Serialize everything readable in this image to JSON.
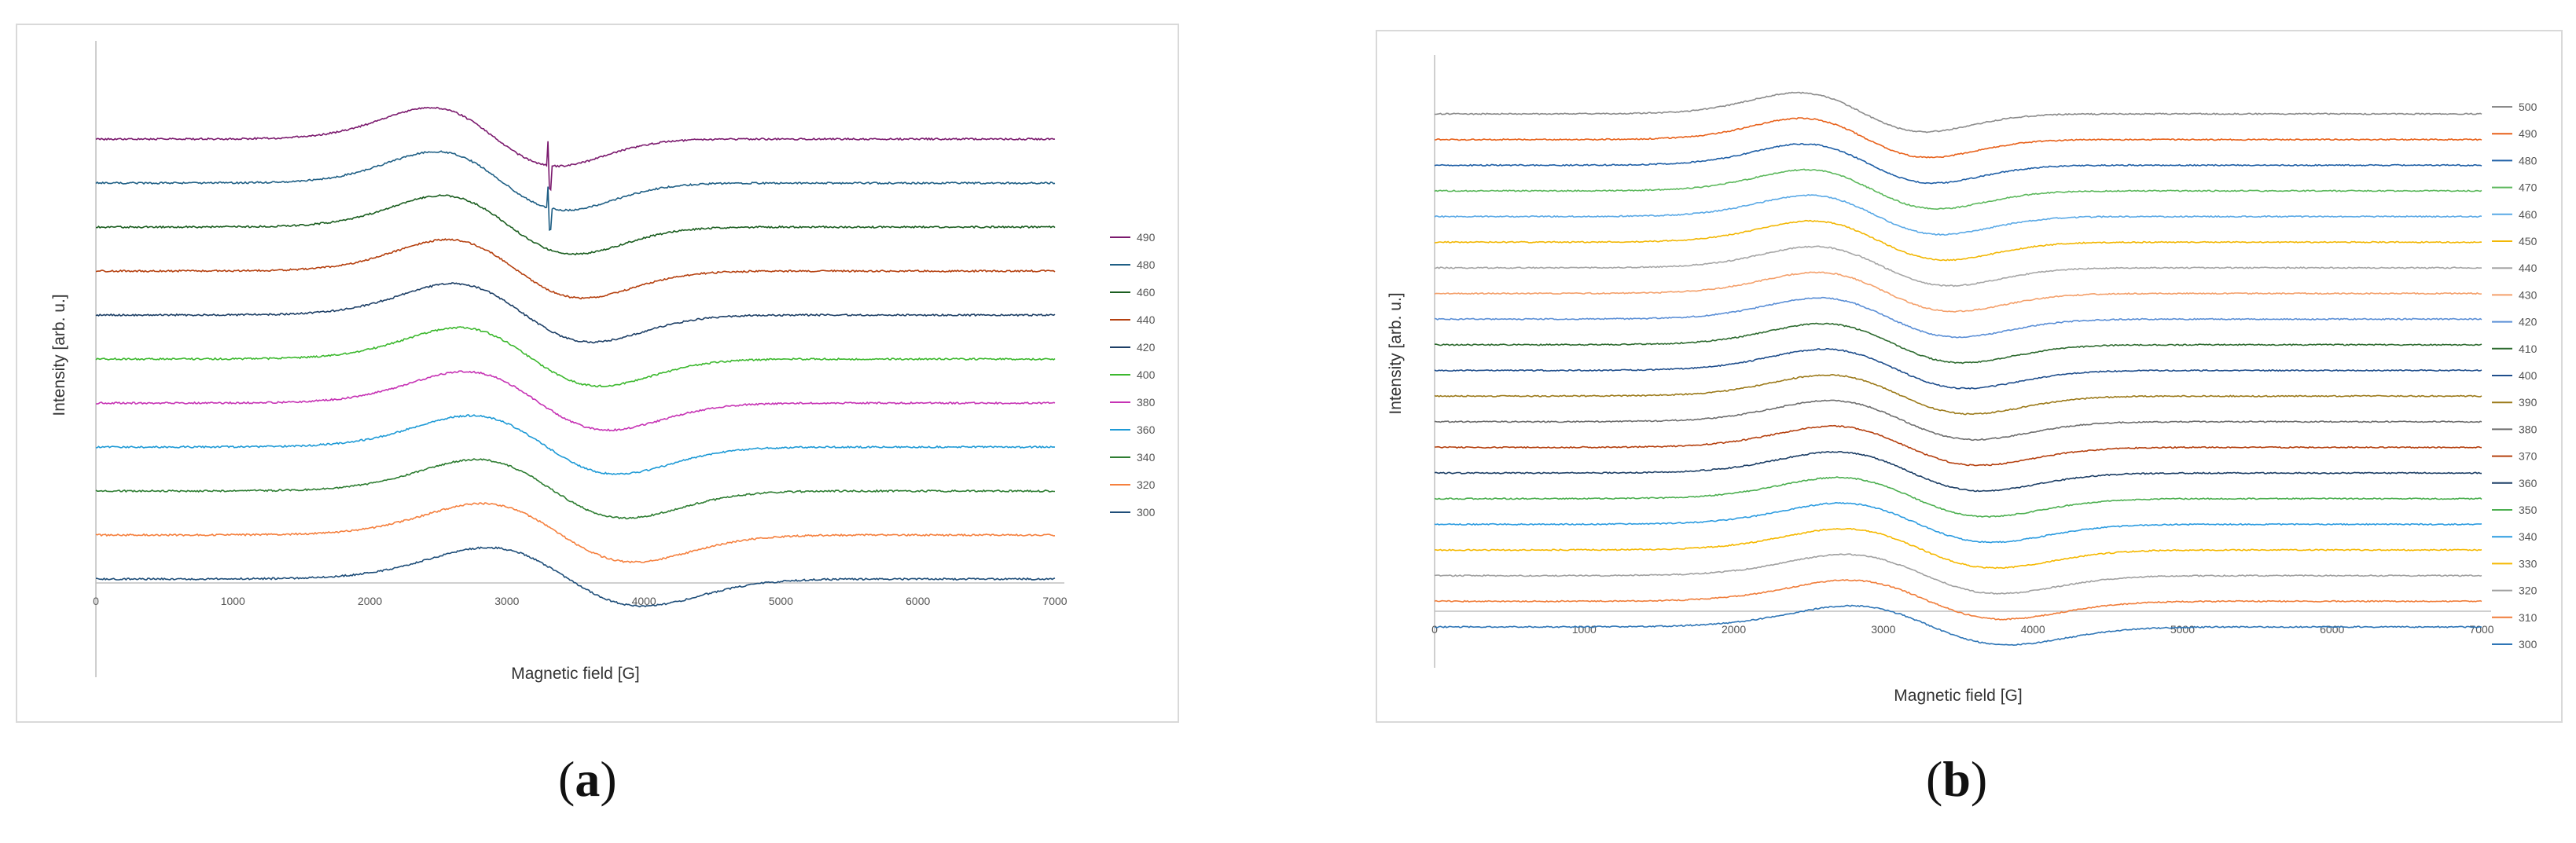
{
  "panels": [
    {
      "caption": "a",
      "chart_data": {
        "type": "line",
        "title": "",
        "xlabel": "Magnetic field  [G]",
        "ylabel": "Intensity  [arb. u.]",
        "xlim": [
          0,
          7000
        ],
        "xticks": [
          0,
          1000,
          2000,
          3000,
          4000,
          5000,
          6000,
          7000
        ],
        "yticks_shown": false,
        "grid": false,
        "legend": "right",
        "series": [
          {
            "name": "490",
            "color": "#7b1a6e"
          },
          {
            "name": "480",
            "color": "#1f5f85"
          },
          {
            "name": "460",
            "color": "#1b5e20"
          },
          {
            "name": "440",
            "color": "#b5400f"
          },
          {
            "name": "420",
            "color": "#1d3f66"
          },
          {
            "name": "400",
            "color": "#3cb82e"
          },
          {
            "name": "380",
            "color": "#c633b4"
          },
          {
            "name": "360",
            "color": "#1e9ad6"
          },
          {
            "name": "340",
            "color": "#2e7d32"
          },
          {
            "name": "320",
            "color": "#f5803e"
          },
          {
            "name": "300",
            "color": "#1f4e79"
          }
        ]
      }
    },
    {
      "caption": "b",
      "chart_data": {
        "type": "line",
        "title": "",
        "xlabel": "Magnetic field [G]",
        "ylabel": "Intensity  [arb. u.]",
        "xlim": [
          0,
          7000
        ],
        "xticks": [
          0,
          1000,
          2000,
          3000,
          4000,
          5000,
          6000,
          7000
        ],
        "yticks_shown": false,
        "grid": false,
        "legend": "right",
        "series": [
          {
            "name": "500",
            "color": "#8c8c8c"
          },
          {
            "name": "490",
            "color": "#e8611a"
          },
          {
            "name": "480",
            "color": "#1f5fa6"
          },
          {
            "name": "470",
            "color": "#5cb85c"
          },
          {
            "name": "460",
            "color": "#5aa9e6"
          },
          {
            "name": "450",
            "color": "#f2b705"
          },
          {
            "name": "440",
            "color": "#a6a6a6"
          },
          {
            "name": "430",
            "color": "#f4a06b"
          },
          {
            "name": "420",
            "color": "#5b8fd6"
          },
          {
            "name": "410",
            "color": "#2e6b30"
          },
          {
            "name": "400",
            "color": "#1f4e8c"
          },
          {
            "name": "390",
            "color": "#9c7a1a"
          },
          {
            "name": "380",
            "color": "#6e6e6e"
          },
          {
            "name": "370",
            "color": "#b5400f"
          },
          {
            "name": "360",
            "color": "#1d3f66"
          },
          {
            "name": "350",
            "color": "#4caf50"
          },
          {
            "name": "340",
            "color": "#2b9be0"
          },
          {
            "name": "330",
            "color": "#f5b800"
          },
          {
            "name": "320",
            "color": "#a0a0a0"
          },
          {
            "name": "310",
            "color": "#f07d3a"
          },
          {
            "name": "300",
            "color": "#2e75b6"
          }
        ]
      }
    }
  ]
}
